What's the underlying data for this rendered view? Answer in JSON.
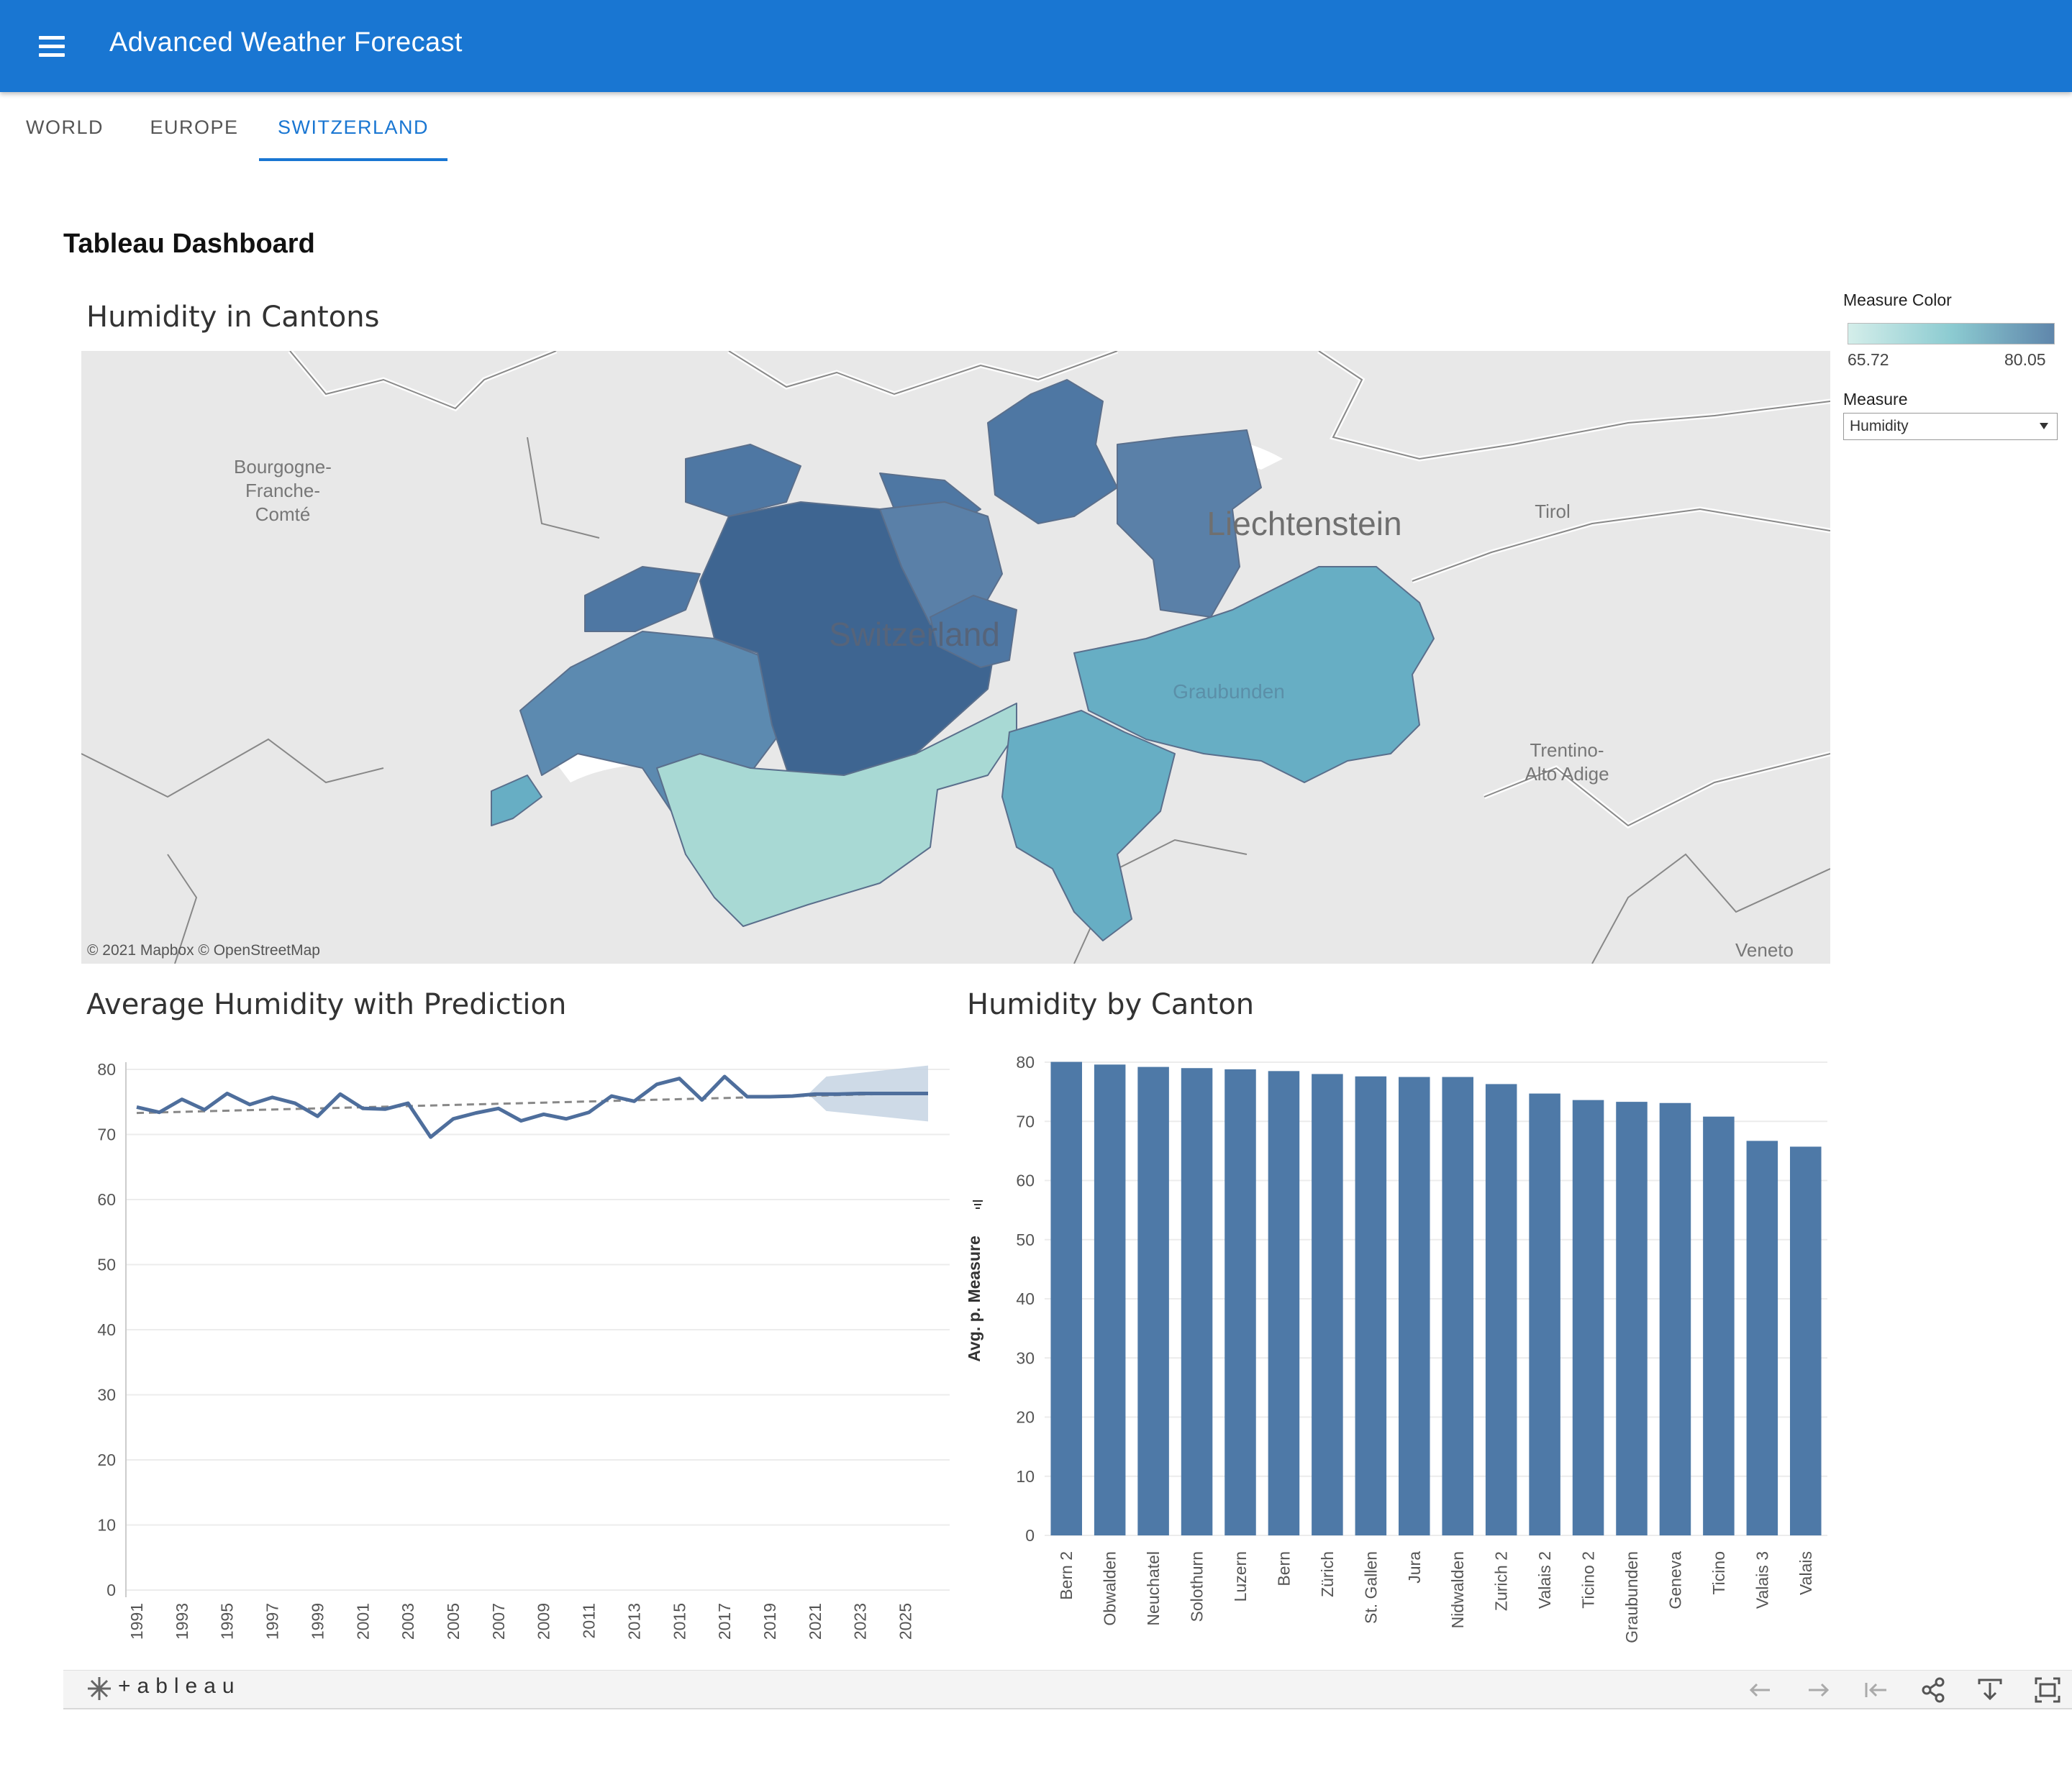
{
  "app": {
    "title": "Advanced Weather Forecast"
  },
  "tabs": [
    {
      "label": "WORLD",
      "active": false
    },
    {
      "label": "EUROPE",
      "active": false
    },
    {
      "label": "SWITZERLAND",
      "active": true
    }
  ],
  "dashboard": {
    "title": "Tableau Dashboard",
    "map_title": "Humidity in Cantons",
    "line_title": "Average Humidity with Prediction",
    "bar_title": "Humidity by Canton"
  },
  "map": {
    "labels": {
      "bourgogne": [
        "Bourgogne-",
        "Franche-",
        "Comté"
      ],
      "liechtenstein": "Liechtenstein",
      "switzerland": "Switzerland",
      "graubunden": "Graubunden",
      "tirol": "Tirol",
      "trentino": [
        "Trentino-",
        "Alto Adige"
      ],
      "veneto": "Veneto"
    },
    "attribution": "© 2021 Mapbox  © OpenStreetMap",
    "colors": {
      "low": "#a8d9d4",
      "mid": "#67aec4",
      "high": "#4e77a3",
      "darkest": "#3e6591"
    }
  },
  "legend": {
    "title": "Measure Color",
    "min": "65.72",
    "max": "80.05",
    "measure_label": "Measure",
    "measure_value": "Humidity"
  },
  "chart_data": [
    {
      "type": "line",
      "title": "Average Humidity with Prediction",
      "x": [
        1991,
        1992,
        1993,
        1994,
        1995,
        1996,
        1997,
        1998,
        1999,
        2000,
        2001,
        2002,
        2003,
        2004,
        2005,
        2006,
        2007,
        2008,
        2009,
        2010,
        2011,
        2012,
        2013,
        2014,
        2015,
        2016,
        2017,
        2018,
        2019,
        2020,
        2021,
        2022,
        2023,
        2024,
        2025,
        2026
      ],
      "series": [
        {
          "values": [
            74.2,
            73.4,
            75.4,
            73.8,
            76.3,
            74.6,
            75.7,
            74.8,
            72.8,
            76.2,
            74.0,
            73.9,
            74.8,
            69.6,
            72.4,
            73.3,
            74.0,
            72.1,
            73.1,
            72.4,
            73.4,
            75.9,
            75.1,
            77.7,
            78.6,
            75.3,
            78.9,
            75.8,
            75.8,
            75.9,
            76.2,
            76.2,
            76.3,
            76.3,
            76.3,
            76.3
          ]
        }
      ],
      "trend_line": {
        "start": 73.3,
        "end": 76.4
      },
      "forecast_band": {
        "from": 2020.7,
        "to": 2026,
        "upper": [
          76.2,
          80.6
        ],
        "lower": [
          76.2,
          72.0
        ]
      },
      "ylim": [
        0,
        80
      ],
      "yticks": [
        0,
        10,
        20,
        30,
        40,
        50,
        60,
        70,
        80
      ],
      "xticks": [
        "1991",
        "1993",
        "1995",
        "1997",
        "1999",
        "2001",
        "2003",
        "2005",
        "2007",
        "2009",
        "2011",
        "2013",
        "2015",
        "2017",
        "2019",
        "2021",
        "2023",
        "2025"
      ],
      "color": "#4e6e9c"
    },
    {
      "type": "bar",
      "title": "Humidity by Canton",
      "ylabel": "Avg. p. Measure",
      "categories": [
        "Bern 2",
        "Obwalden",
        "Neuchatel",
        "Solothurn",
        "Luzern",
        "Bern",
        "Zürich",
        "St. Gallen",
        "Jura",
        "Nidwalden",
        "Zurich 2",
        "Valais 2",
        "Ticino 2",
        "Graubunden",
        "Geneva",
        "Ticino",
        "Valais 3",
        "Valais"
      ],
      "values": [
        80.05,
        79.6,
        79.2,
        79.0,
        78.8,
        78.5,
        78.0,
        77.6,
        77.5,
        77.5,
        76.3,
        74.7,
        73.6,
        73.3,
        73.1,
        70.8,
        66.7,
        65.72
      ],
      "ylim": [
        0,
        80
      ],
      "yticks": [
        0,
        10,
        20,
        30,
        40,
        50,
        60,
        70,
        80
      ],
      "color": "#4e79a7"
    }
  ],
  "footer": {
    "logo": "+ableau"
  }
}
